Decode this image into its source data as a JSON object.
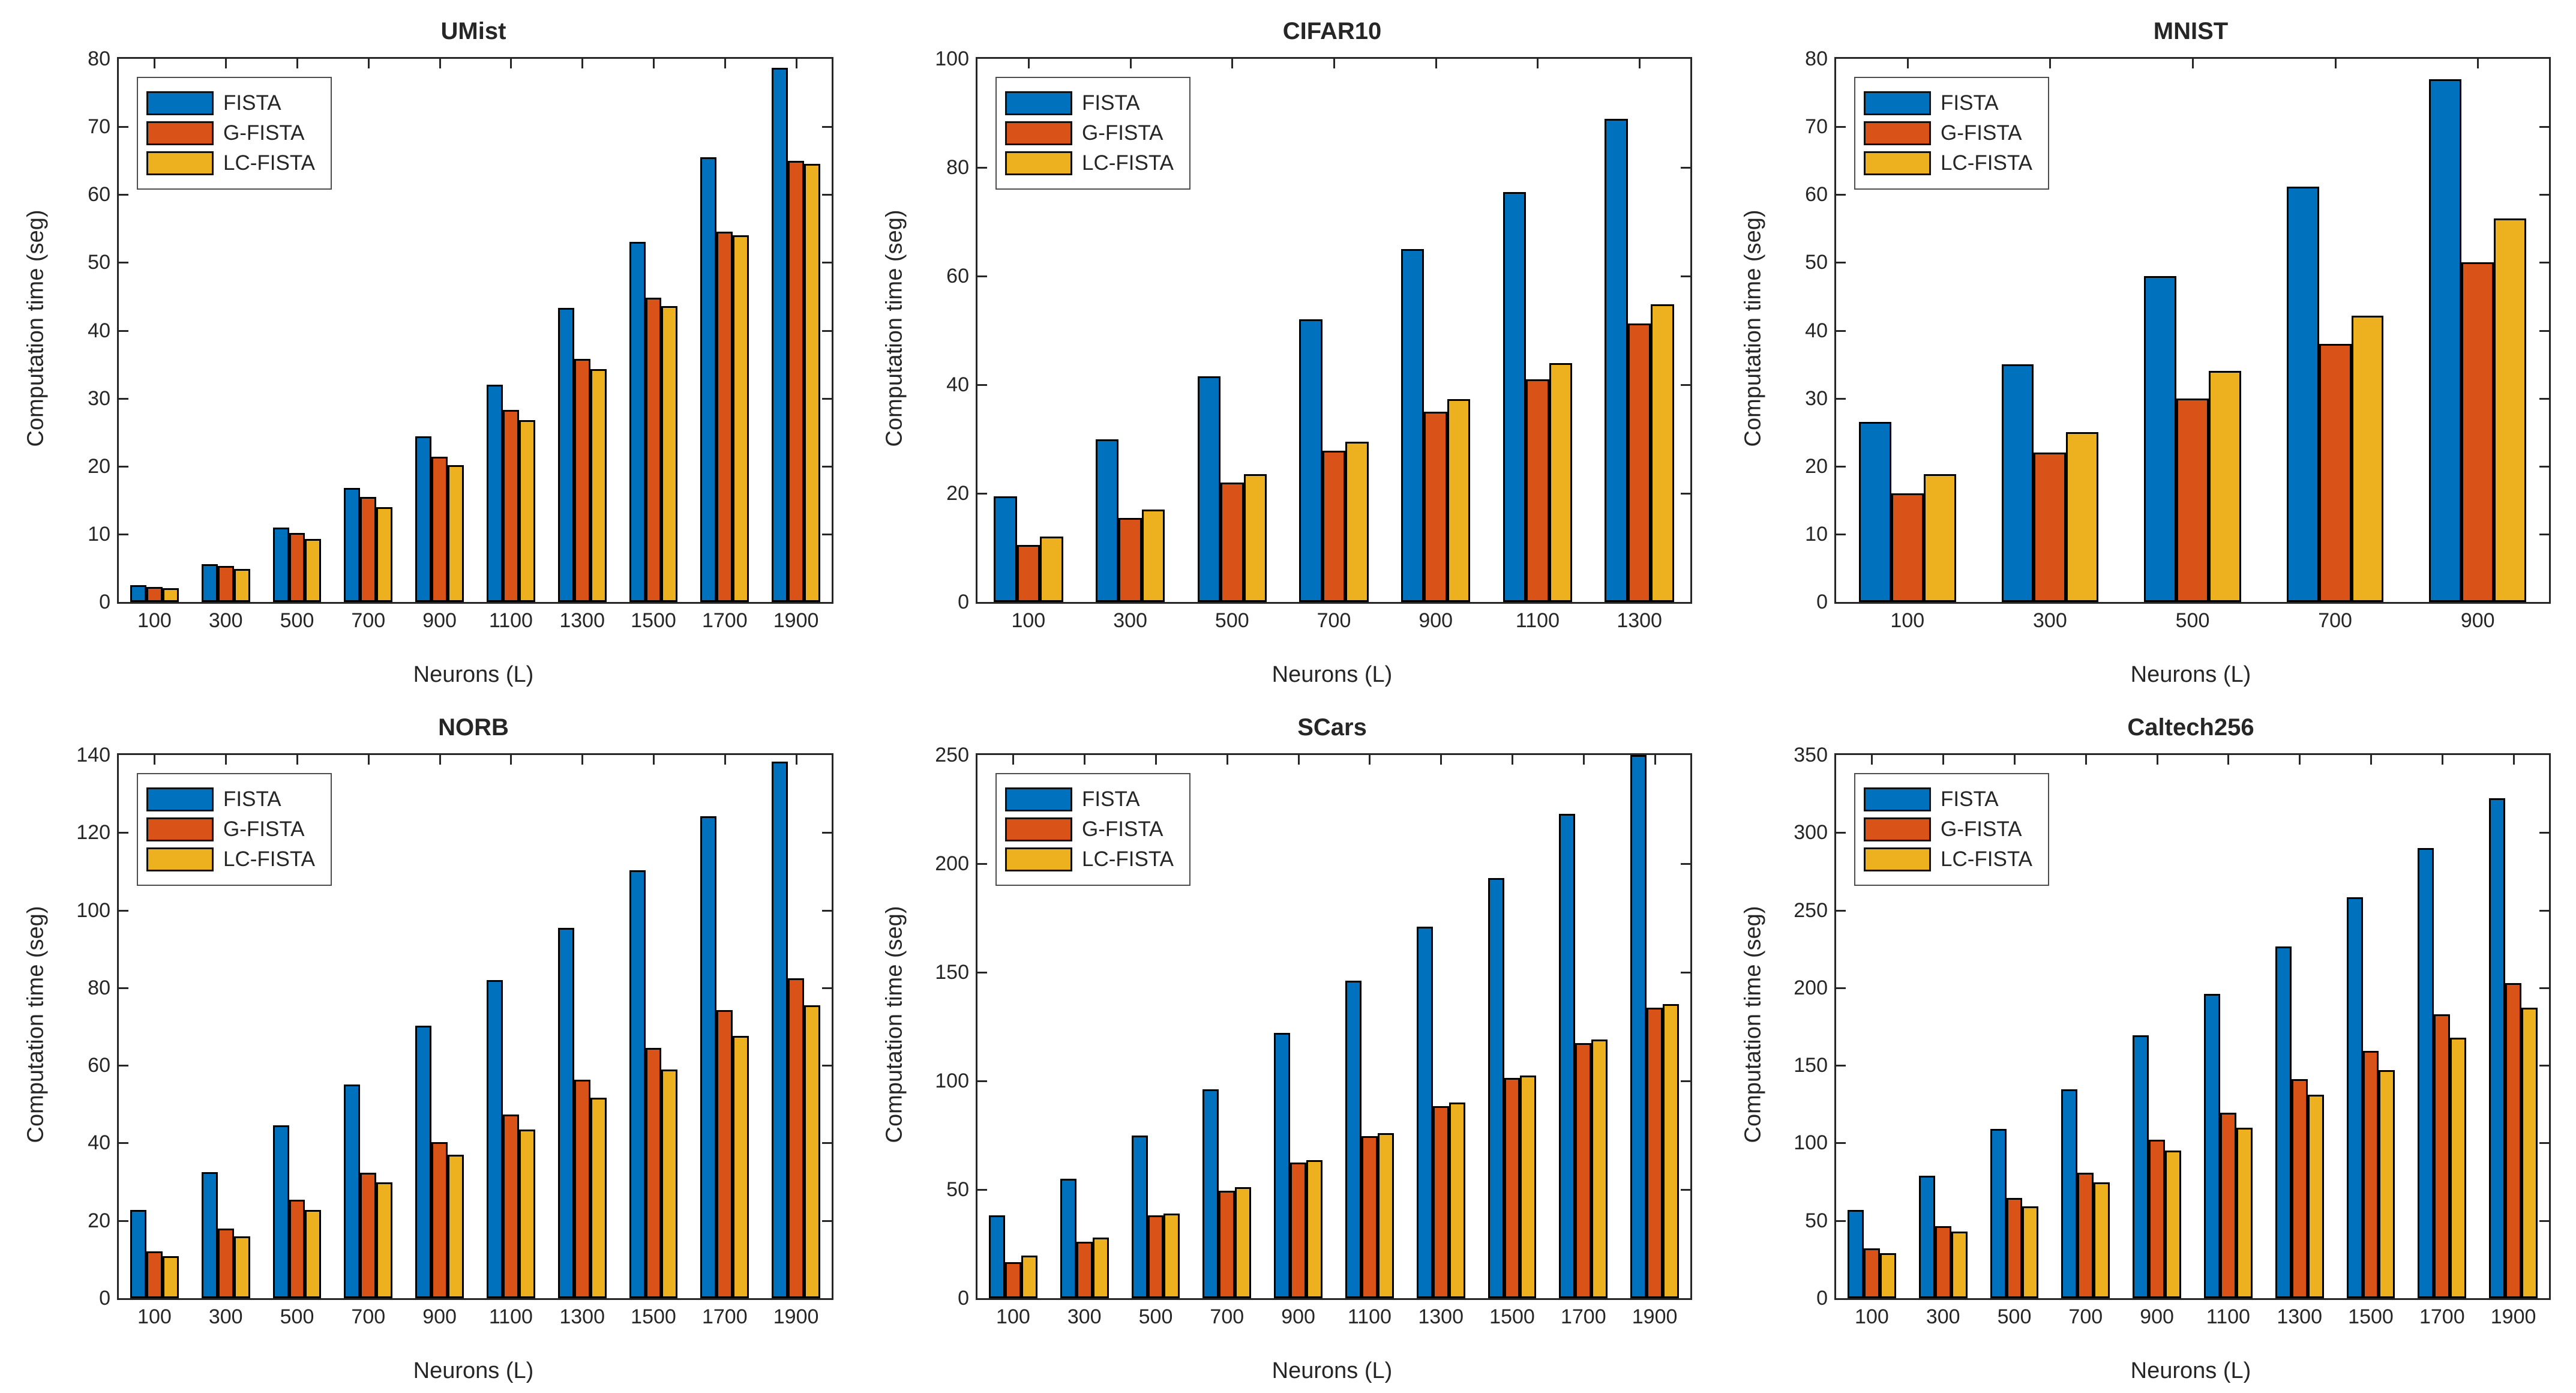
{
  "figure": {
    "background": "#ffffff",
    "axis_color": "#262626",
    "text_color": "#262626",
    "xlabel": "Neurons (L)",
    "ylabel": "Computation time (seg)",
    "legend_labels": [
      "FISTA",
      "G-FISTA",
      "LC-FISTA"
    ],
    "series_colors": [
      "#0072BD",
      "#D95319",
      "#EDB120"
    ]
  },
  "chart_data": [
    {
      "type": "bar",
      "title": "UMist",
      "xlabel": "Neurons (L)",
      "ylabel": "Computation time (seg)",
      "categories": [
        "100",
        "300",
        "500",
        "700",
        "900",
        "1100",
        "1300",
        "1500",
        "1700",
        "1900"
      ],
      "series": [
        {
          "name": "FISTA",
          "color": "#0072BD",
          "values": [
            2.5,
            5.6,
            11.0,
            16.8,
            24.4,
            32.0,
            43.3,
            53.0,
            65.5,
            78.7
          ]
        },
        {
          "name": "G-FISTA",
          "color": "#D95319",
          "values": [
            2.2,
            5.3,
            10.2,
            15.5,
            21.4,
            28.3,
            35.8,
            44.8,
            54.5,
            65.0
          ]
        },
        {
          "name": "LC-FISTA",
          "color": "#EDB120",
          "values": [
            2.0,
            4.9,
            9.3,
            14.0,
            20.2,
            26.8,
            34.3,
            43.6,
            54.0,
            64.5
          ]
        }
      ],
      "ylim": [
        0,
        80
      ],
      "yticks": [
        "0",
        "10",
        "20",
        "30",
        "40",
        "50",
        "60",
        "70",
        "80"
      ],
      "legend": [
        "FISTA",
        "G-FISTA",
        "LC-FISTA"
      ],
      "legend_position": "top-left",
      "grid": false
    },
    {
      "type": "bar",
      "title": "CIFAR10",
      "xlabel": "Neurons (L)",
      "ylabel": "Computation time (seg)",
      "categories": [
        "100",
        "300",
        "500",
        "700",
        "900",
        "1100",
        "1300"
      ],
      "series": [
        {
          "name": "FISTA",
          "color": "#0072BD",
          "values": [
            19.5,
            30.0,
            41.5,
            52.0,
            65.0,
            75.5,
            89.0
          ]
        },
        {
          "name": "G-FISTA",
          "color": "#D95319",
          "values": [
            10.5,
            15.5,
            22.0,
            27.8,
            35.0,
            41.0,
            51.3
          ]
        },
        {
          "name": "LC-FISTA",
          "color": "#EDB120",
          "values": [
            12.0,
            17.0,
            23.5,
            29.5,
            37.3,
            44.0,
            54.8
          ]
        }
      ],
      "ylim": [
        0,
        100
      ],
      "yticks": [
        "0",
        "20",
        "40",
        "60",
        "80",
        "100"
      ],
      "legend": [
        "FISTA",
        "G-FISTA",
        "LC-FISTA"
      ],
      "legend_position": "top-left",
      "grid": false
    },
    {
      "type": "bar",
      "title": "MNIST",
      "xlabel": "Neurons (L)",
      "ylabel": "Computation time (seg)",
      "categories": [
        "100",
        "300",
        "500",
        "700",
        "900"
      ],
      "series": [
        {
          "name": "FISTA",
          "color": "#0072BD",
          "values": [
            26.5,
            35.0,
            48.0,
            61.2,
            77.0
          ]
        },
        {
          "name": "G-FISTA",
          "color": "#D95319",
          "values": [
            16.0,
            22.0,
            30.0,
            38.0,
            50.0
          ]
        },
        {
          "name": "LC-FISTA",
          "color": "#EDB120",
          "values": [
            18.8,
            25.0,
            34.0,
            42.2,
            56.5
          ]
        }
      ],
      "ylim": [
        0,
        80
      ],
      "yticks": [
        "0",
        "10",
        "20",
        "30",
        "40",
        "50",
        "60",
        "70",
        "80"
      ],
      "legend": [
        "FISTA",
        "G-FISTA",
        "LC-FISTA"
      ],
      "legend_position": "top-left",
      "grid": false
    },
    {
      "type": "bar",
      "title": "NORB",
      "xlabel": "Neurons (L)",
      "ylabel": "Computation time (seg)",
      "categories": [
        "100",
        "300",
        "500",
        "700",
        "900",
        "1100",
        "1300",
        "1500",
        "1700",
        "1900"
      ],
      "series": [
        {
          "name": "FISTA",
          "color": "#0072BD",
          "values": [
            22.8,
            32.5,
            44.5,
            55.0,
            70.3,
            82.0,
            95.5,
            110.3,
            124.3,
            138.3
          ]
        },
        {
          "name": "G-FISTA",
          "color": "#D95319",
          "values": [
            12.0,
            18.0,
            25.3,
            32.3,
            40.3,
            47.3,
            56.3,
            64.5,
            74.2,
            82.5
          ]
        },
        {
          "name": "LC-FISTA",
          "color": "#EDB120",
          "values": [
            10.8,
            16.0,
            22.7,
            29.8,
            37.0,
            43.5,
            51.7,
            59.0,
            67.6,
            75.5
          ]
        }
      ],
      "ylim": [
        0,
        140
      ],
      "yticks": [
        "0",
        "20",
        "40",
        "60",
        "80",
        "100",
        "120",
        "140"
      ],
      "legend": [
        "FISTA",
        "G-FISTA",
        "LC-FISTA"
      ],
      "legend_position": "top-left",
      "grid": false
    },
    {
      "type": "bar",
      "title": "SCars",
      "xlabel": "Neurons (L)",
      "ylabel": "Computation time (seg)",
      "categories": [
        "100",
        "300",
        "500",
        "700",
        "900",
        "1100",
        "1300",
        "1500",
        "1700",
        "1900"
      ],
      "series": [
        {
          "name": "FISTA",
          "color": "#0072BD",
          "values": [
            38.0,
            55.0,
            75.0,
            96.0,
            122.0,
            146.0,
            171.0,
            193.5,
            223.0,
            250.0
          ]
        },
        {
          "name": "G-FISTA",
          "color": "#D95319",
          "values": [
            16.5,
            26.0,
            38.0,
            49.5,
            62.5,
            74.5,
            88.5,
            101.5,
            117.5,
            133.8
          ]
        },
        {
          "name": "LC-FISTA",
          "color": "#EDB120",
          "values": [
            19.5,
            28.0,
            39.0,
            51.0,
            63.5,
            76.0,
            90.0,
            102.5,
            119.0,
            135.5
          ]
        }
      ],
      "ylim": [
        0,
        250
      ],
      "yticks": [
        "0",
        "50",
        "100",
        "150",
        "200",
        "250"
      ],
      "legend": [
        "FISTA",
        "G-FISTA",
        "LC-FISTA"
      ],
      "legend_position": "top-left",
      "grid": false
    },
    {
      "type": "bar",
      "title": "Caltech256",
      "xlabel": "Neurons (L)",
      "ylabel": "Computation time (seg)",
      "categories": [
        "100",
        "300",
        "500",
        "700",
        "900",
        "1100",
        "1300",
        "1500",
        "1700",
        "1900"
      ],
      "series": [
        {
          "name": "FISTA",
          "color": "#0072BD",
          "values": [
            57.0,
            79.0,
            109.0,
            134.5,
            169.5,
            196.0,
            226.5,
            258.5,
            290.0,
            322.0
          ]
        },
        {
          "name": "G-FISTA",
          "color": "#D95319",
          "values": [
            32.0,
            46.5,
            64.5,
            81.0,
            102.0,
            119.5,
            141.0,
            159.5,
            183.0,
            203.0
          ]
        },
        {
          "name": "LC-FISTA",
          "color": "#EDB120",
          "values": [
            29.0,
            43.0,
            59.0,
            74.5,
            95.0,
            110.0,
            131.0,
            147.0,
            168.0,
            187.0
          ]
        }
      ],
      "ylim": [
        0,
        350
      ],
      "yticks": [
        "0",
        "50",
        "100",
        "150",
        "200",
        "250",
        "300",
        "350"
      ],
      "legend": [
        "FISTA",
        "G-FISTA",
        "LC-FISTA"
      ],
      "legend_position": "top-left",
      "grid": false
    }
  ]
}
